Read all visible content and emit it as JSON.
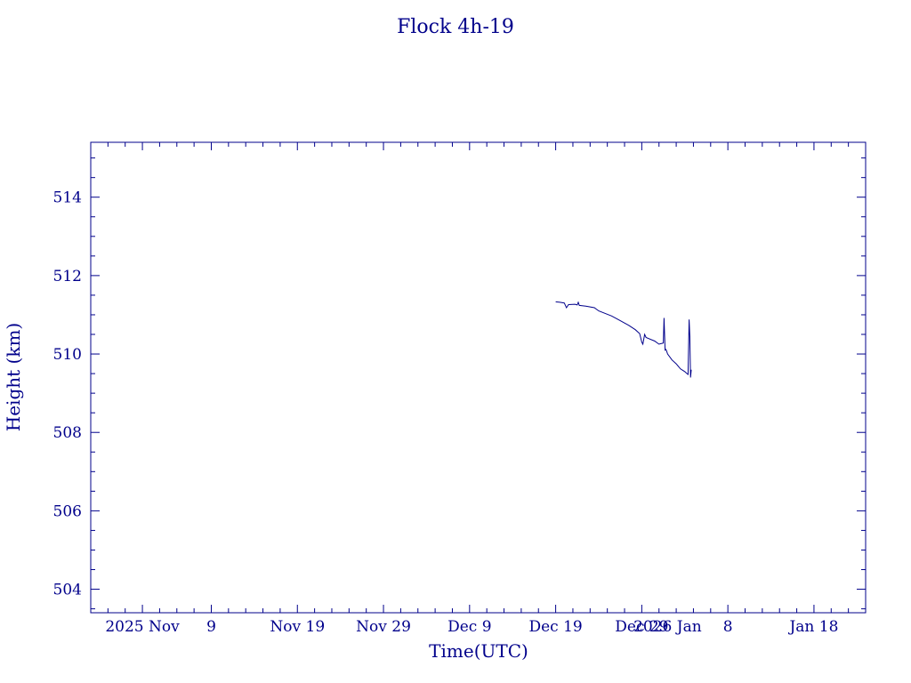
{
  "chart_data": {
    "type": "line",
    "title": "Flock 4h-19",
    "xlabel": "Time(UTC)",
    "ylabel": "Height (km)",
    "color": "#00008b",
    "xlim": [
      "2025-10-26",
      "2026-01-24"
    ],
    "ylim": [
      503.4,
      515.4
    ],
    "x_ticks": [
      {
        "date": "2025-11-01",
        "label": "2025 Nov"
      },
      {
        "date": "2025-11-09",
        "label": "9"
      },
      {
        "date": "2025-11-19",
        "label": "Nov 19"
      },
      {
        "date": "2025-11-29",
        "label": "Nov 29"
      },
      {
        "date": "2025-12-09",
        "label": "Dec  9"
      },
      {
        "date": "2025-12-19",
        "label": "Dec 19"
      },
      {
        "date": "2025-12-29",
        "label": "Dec 29"
      },
      {
        "date": "2026-01-01",
        "label": "2026 Jan"
      },
      {
        "date": "2026-01-08",
        "label": "8"
      },
      {
        "date": "2026-01-18",
        "label": "Jan 18"
      }
    ],
    "y_ticks": [
      504,
      506,
      508,
      510,
      512,
      514
    ],
    "series": [
      {
        "x": [
          "2025-12-19",
          "2025-12-19 12:00",
          "2025-12-20",
          "2025-12-20 06:00",
          "2025-12-20 12:00",
          "2025-12-21 06:00",
          "2025-12-21 12:00",
          "2025-12-21 15:00",
          "2025-12-21 18:00",
          "2025-12-22 12:00",
          "2025-12-23 12:00",
          "2025-12-24",
          "2025-12-25 12:00",
          "2025-12-26 12:00",
          "2025-12-27 12:00",
          "2025-12-28 06:00",
          "2025-12-28 18:00",
          "2025-12-29",
          "2025-12-29 03:00",
          "2025-12-29 08:00",
          "2025-12-29 12:00",
          "2025-12-30 12:00",
          "2025-12-31",
          "2025-12-31 12:00",
          "2025-12-31 14:00",
          "2025-12-31 17:00",
          "2025-12-31 19:00",
          "2025-12-31 21:00",
          "2026-01-01",
          "2026-01-01 12:00",
          "2026-01-02",
          "2026-01-02 12:00",
          "2026-01-03",
          "2026-01-03 06:00",
          "2026-01-03 09:00",
          "2026-01-03 12:00",
          "2026-01-03 14:00",
          "2026-01-03 16:00",
          "2026-01-03 18:00"
        ],
        "y": [
          511.33,
          511.32,
          511.3,
          511.18,
          511.26,
          511.27,
          511.25,
          511.32,
          511.24,
          511.22,
          511.18,
          511.1,
          510.97,
          510.85,
          510.73,
          510.62,
          510.52,
          510.3,
          510.25,
          510.5,
          510.42,
          510.33,
          510.25,
          510.28,
          510.92,
          510.1,
          510.12,
          510.08,
          510.0,
          509.85,
          509.75,
          509.62,
          509.55,
          509.5,
          509.48,
          510.88,
          510.45,
          509.4,
          509.6
        ]
      }
    ]
  }
}
